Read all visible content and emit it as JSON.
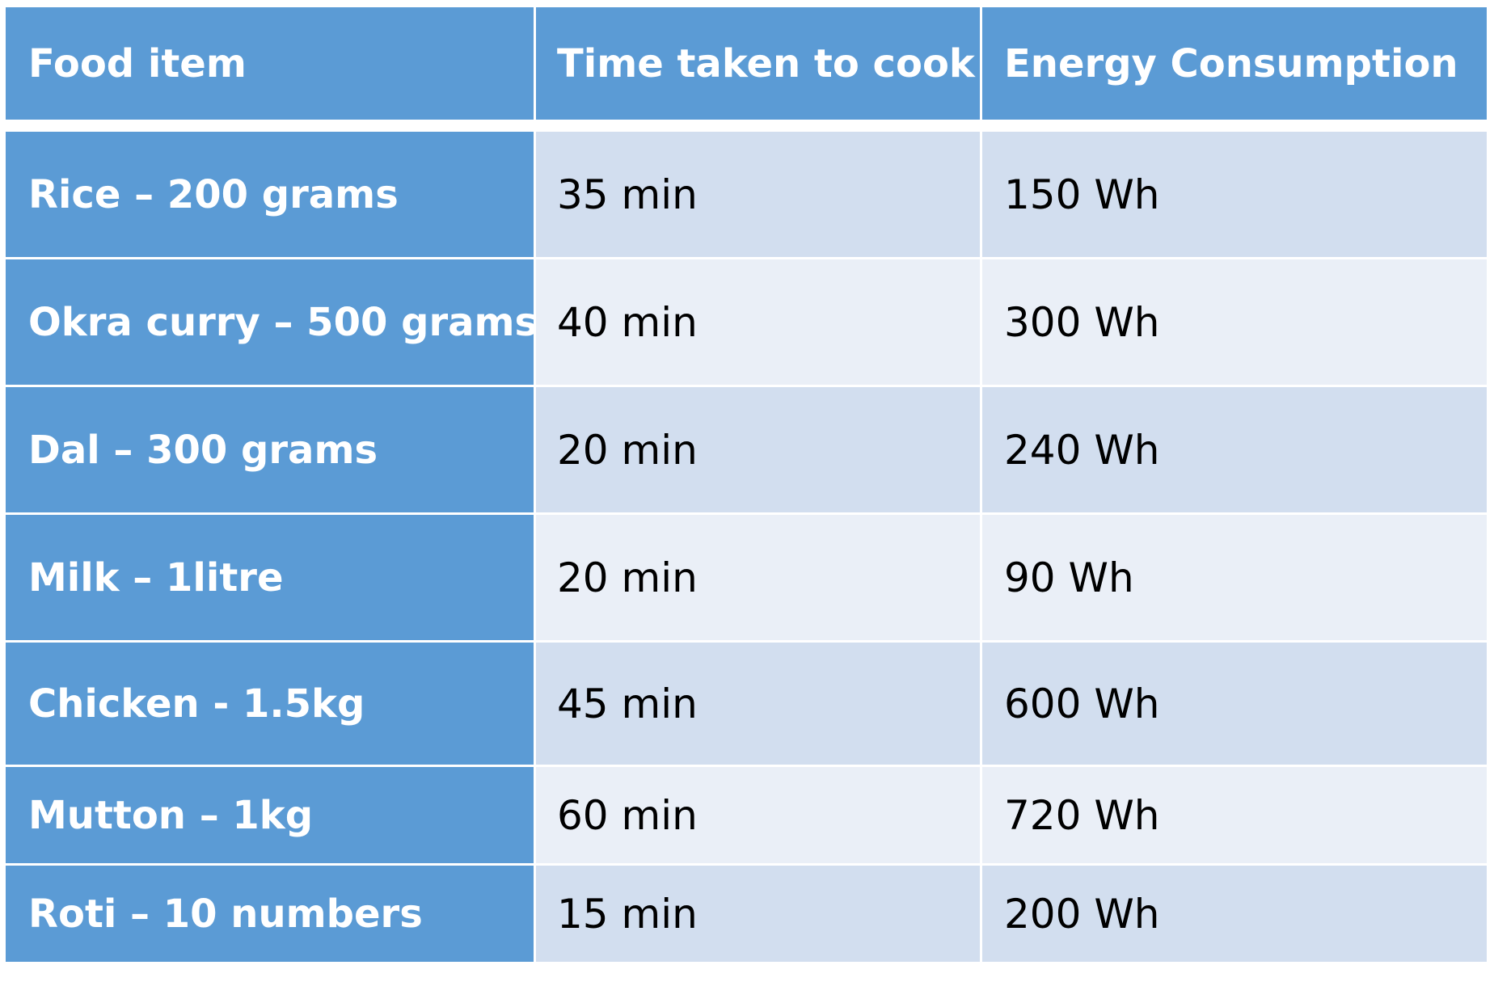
{
  "table": {
    "headers": [
      "Food item",
      "Time taken to cook",
      "Energy Consumption"
    ],
    "rows": [
      {
        "food": "Rice – 200 grams",
        "time": "35 min",
        "energy": "150 Wh"
      },
      {
        "food": "Okra curry – 500 grams",
        "time": "40 min",
        "energy": "300 Wh"
      },
      {
        "food": "Dal – 300 grams",
        "time": "20 min",
        "energy": "240 Wh"
      },
      {
        "food": "Milk – 1litre",
        "time": "20 min",
        "energy": "90 Wh"
      },
      {
        "food": "Chicken  - 1.5kg",
        "time": "45 min",
        "energy": "600 Wh"
      },
      {
        "food": "Mutton – 1kg",
        "time": "60 min",
        "energy": "720 Wh"
      },
      {
        "food": "Roti – 10 numbers",
        "time": "15 min",
        "energy": "200 Wh"
      }
    ]
  },
  "colors": {
    "header_bg": "#5b9bd5",
    "row_band_dark": "#d2deef",
    "row_band_light": "#eaeff7",
    "header_text": "#ffffff",
    "body_text": "#000000"
  }
}
